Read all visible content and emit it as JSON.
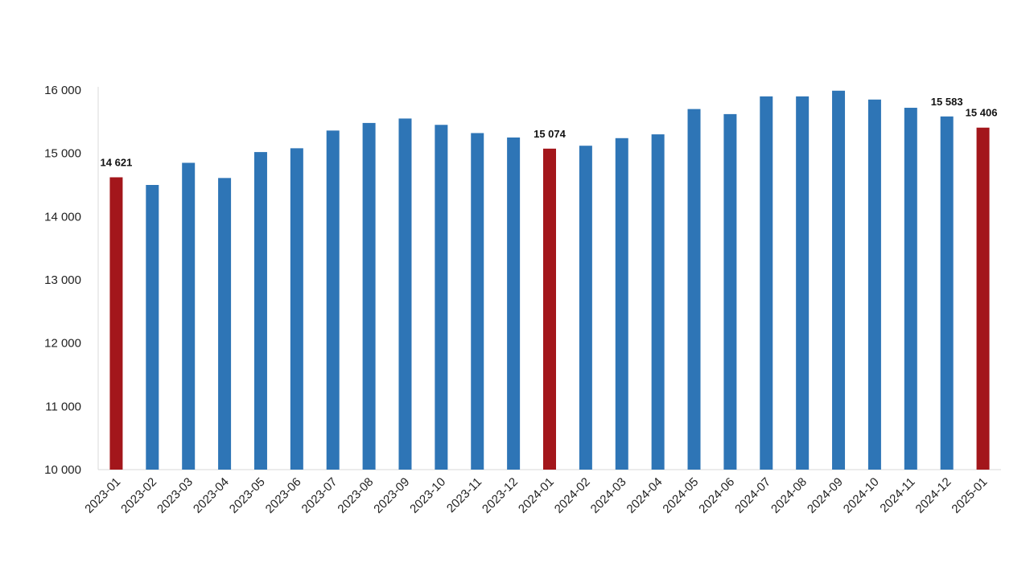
{
  "chart_data": {
    "type": "bar",
    "title": "",
    "xlabel": "",
    "ylabel": "",
    "ylim": [
      10000,
      16000
    ],
    "yticks": [
      10000,
      11000,
      12000,
      13000,
      14000,
      15000,
      16000
    ],
    "ytick_labels": [
      "10 000",
      "11 000",
      "12 000",
      "13 000",
      "14 000",
      "15 000",
      "16 000"
    ],
    "grid": false,
    "legend": "none",
    "categories": [
      "2023-01",
      "2023-02",
      "2023-03",
      "2023-04",
      "2023-05",
      "2023-06",
      "2023-07",
      "2023-08",
      "2023-09",
      "2023-10",
      "2023-11",
      "2023-12",
      "2024-01",
      "2024-02",
      "2024-03",
      "2024-04",
      "2024-05",
      "2024-06",
      "2024-07",
      "2024-08",
      "2024-09",
      "2024-10",
      "2024-11",
      "2024-12",
      "2025-01"
    ],
    "values": [
      14621,
      14500,
      14850,
      14610,
      15020,
      15080,
      15360,
      15480,
      15550,
      15450,
      15320,
      15250,
      15074,
      15120,
      15240,
      15300,
      15700,
      15620,
      15900,
      15900,
      15990,
      15850,
      15720,
      15583,
      15406
    ],
    "highlight": [
      0,
      12,
      24
    ],
    "data_labels": [
      {
        "index": 0,
        "text": "14 621"
      },
      {
        "index": 12,
        "text": "15 074"
      },
      {
        "index": 23,
        "text": "15 583"
      },
      {
        "index": 24,
        "text": "15 406"
      }
    ],
    "colors": {
      "bar": "#2e75b6",
      "highlight": "#a3161b",
      "axis": "#d9d9d9"
    }
  }
}
